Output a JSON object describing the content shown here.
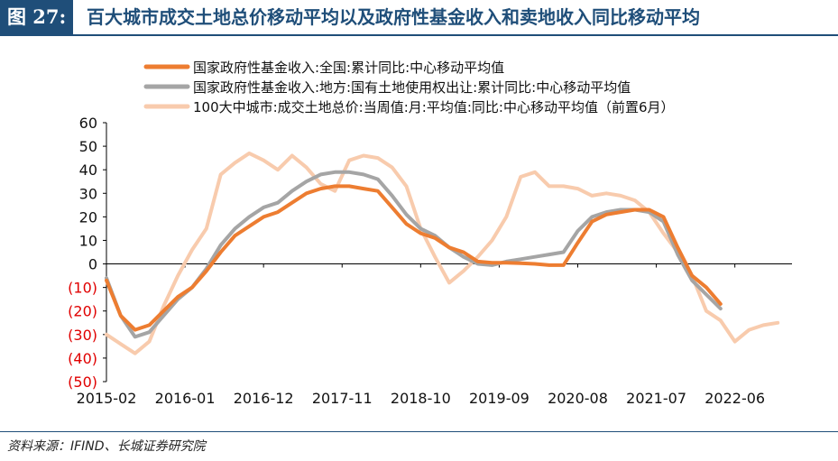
{
  "header": {
    "figure_label": "图 27:",
    "title": "百大城市成交土地总价移动平均以及政府性基金收入和卖地收入同比移动平均"
  },
  "footer": {
    "source": "资料来源：IFIND、长城证券研究院"
  },
  "chart_data": {
    "type": "line",
    "ylim": [
      -50,
      60
    ],
    "yticks": [
      60,
      50,
      40,
      30,
      20,
      10,
      0,
      -10,
      -20,
      -30,
      -40,
      -50
    ],
    "ytick_labels": [
      "60",
      "50",
      "40",
      "30",
      "20",
      "10",
      "0",
      "(10)",
      "(20)",
      "(30)",
      "(40)",
      "(50)"
    ],
    "xlim": [
      "2015-02",
      "2023-02"
    ],
    "xtick_labels": [
      "2015-02",
      "2016-01",
      "2016-12",
      "2017-11",
      "2018-10",
      "2019-09",
      "2020-08",
      "2021-07",
      "2022-06"
    ],
    "grid": false,
    "legend_position": "top",
    "series": [
      {
        "name": "国家政府性基金收入:全国:累计同比:中心移动平均值",
        "color": "#ed7d31",
        "points": [
          [
            "2015-02",
            -7
          ],
          [
            "2015-04",
            -22
          ],
          [
            "2015-06",
            -28
          ],
          [
            "2015-08",
            -26
          ],
          [
            "2015-10",
            -20
          ],
          [
            "2015-12",
            -14
          ],
          [
            "2016-02",
            -10
          ],
          [
            "2016-04",
            -3
          ],
          [
            "2016-06",
            5
          ],
          [
            "2016-08",
            12
          ],
          [
            "2016-10",
            16
          ],
          [
            "2016-12",
            20
          ],
          [
            "2017-02",
            22
          ],
          [
            "2017-04",
            26
          ],
          [
            "2017-06",
            30
          ],
          [
            "2017-08",
            32
          ],
          [
            "2017-10",
            33
          ],
          [
            "2017-12",
            33
          ],
          [
            "2018-02",
            32
          ],
          [
            "2018-04",
            31
          ],
          [
            "2018-06",
            24
          ],
          [
            "2018-08",
            17
          ],
          [
            "2018-10",
            13
          ],
          [
            "2018-12",
            11
          ],
          [
            "2019-02",
            7
          ],
          [
            "2019-04",
            5
          ],
          [
            "2019-06",
            1
          ],
          [
            "2019-08",
            0.5
          ],
          [
            "2019-10",
            0.5
          ],
          [
            "2019-12",
            0.3
          ],
          [
            "2020-02",
            0
          ],
          [
            "2020-04",
            -0.5
          ],
          [
            "2020-06",
            -0.5
          ],
          [
            "2020-08",
            9
          ],
          [
            "2020-10",
            18
          ],
          [
            "2020-12",
            21
          ],
          [
            "2021-02",
            22
          ],
          [
            "2021-04",
            23
          ],
          [
            "2021-06",
            23
          ],
          [
            "2021-08",
            20
          ],
          [
            "2021-10",
            7
          ],
          [
            "2021-12",
            -5
          ],
          [
            "2022-02",
            -10
          ],
          [
            "2022-04",
            -17
          ]
        ]
      },
      {
        "name": "国家政府性基金收入:地方:国有土地使用权出让:累计同比:中心移动平均值",
        "color": "#a5a5a5",
        "points": [
          [
            "2015-02",
            -6
          ],
          [
            "2015-04",
            -22
          ],
          [
            "2015-06",
            -31
          ],
          [
            "2015-08",
            -29
          ],
          [
            "2015-10",
            -22
          ],
          [
            "2015-12",
            -15
          ],
          [
            "2016-02",
            -10
          ],
          [
            "2016-04",
            -2
          ],
          [
            "2016-06",
            8
          ],
          [
            "2016-08",
            15
          ],
          [
            "2016-10",
            20
          ],
          [
            "2016-12",
            24
          ],
          [
            "2017-02",
            26
          ],
          [
            "2017-04",
            31
          ],
          [
            "2017-06",
            35
          ],
          [
            "2017-08",
            38
          ],
          [
            "2017-10",
            39
          ],
          [
            "2017-12",
            39
          ],
          [
            "2018-02",
            38
          ],
          [
            "2018-04",
            36
          ],
          [
            "2018-06",
            29
          ],
          [
            "2018-08",
            21
          ],
          [
            "2018-10",
            15
          ],
          [
            "2018-12",
            12
          ],
          [
            "2019-02",
            7
          ],
          [
            "2019-04",
            3
          ],
          [
            "2019-06",
            0
          ],
          [
            "2019-08",
            -0.5
          ],
          [
            "2019-10",
            1
          ],
          [
            "2019-12",
            2
          ],
          [
            "2020-02",
            3
          ],
          [
            "2020-04",
            4
          ],
          [
            "2020-06",
            5
          ],
          [
            "2020-08",
            14
          ],
          [
            "2020-10",
            20
          ],
          [
            "2020-12",
            22
          ],
          [
            "2021-02",
            23
          ],
          [
            "2021-04",
            23
          ],
          [
            "2021-06",
            22
          ],
          [
            "2021-08",
            18
          ],
          [
            "2021-10",
            4
          ],
          [
            "2021-12",
            -7
          ],
          [
            "2022-02",
            -13
          ],
          [
            "2022-04",
            -19
          ]
        ]
      },
      {
        "name": "100大中城市:成交土地总价:当周值:月:平均值:同比:中心移动平均值（前置6月）",
        "color": "#f8cbad",
        "points": [
          [
            "2015-02",
            -30
          ],
          [
            "2015-04",
            -34
          ],
          [
            "2015-06",
            -38
          ],
          [
            "2015-08",
            -33
          ],
          [
            "2015-10",
            -18
          ],
          [
            "2015-12",
            -5
          ],
          [
            "2016-02",
            6
          ],
          [
            "2016-04",
            15
          ],
          [
            "2016-06",
            38
          ],
          [
            "2016-08",
            43
          ],
          [
            "2016-10",
            47
          ],
          [
            "2016-12",
            44
          ],
          [
            "2017-02",
            40
          ],
          [
            "2017-04",
            46
          ],
          [
            "2017-06",
            41
          ],
          [
            "2017-08",
            34
          ],
          [
            "2017-10",
            31
          ],
          [
            "2017-12",
            44
          ],
          [
            "2018-02",
            46
          ],
          [
            "2018-04",
            45
          ],
          [
            "2018-06",
            41
          ],
          [
            "2018-08",
            33
          ],
          [
            "2018-10",
            15
          ],
          [
            "2018-12",
            3
          ],
          [
            "2019-02",
            -8
          ],
          [
            "2019-04",
            -3
          ],
          [
            "2019-06",
            3
          ],
          [
            "2019-08",
            10
          ],
          [
            "2019-10",
            20
          ],
          [
            "2019-12",
            37
          ],
          [
            "2020-02",
            39
          ],
          [
            "2020-04",
            33
          ],
          [
            "2020-06",
            33
          ],
          [
            "2020-08",
            32
          ],
          [
            "2020-10",
            29
          ],
          [
            "2020-12",
            30
          ],
          [
            "2021-02",
            29
          ],
          [
            "2021-04",
            27
          ],
          [
            "2021-06",
            22
          ],
          [
            "2021-08",
            13
          ],
          [
            "2021-10",
            5
          ],
          [
            "2021-12",
            -5
          ],
          [
            "2022-02",
            -20
          ],
          [
            "2022-04",
            -24
          ],
          [
            "2022-06",
            -33
          ],
          [
            "2022-08",
            -28
          ],
          [
            "2022-10",
            -26
          ],
          [
            "2022-12",
            -25
          ]
        ]
      }
    ]
  }
}
